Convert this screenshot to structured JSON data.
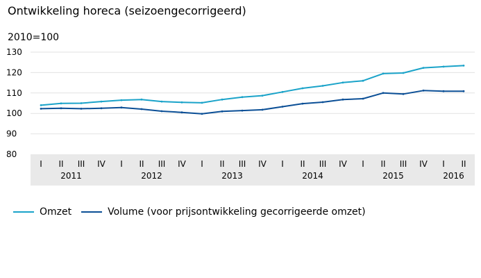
{
  "title": "Ontwikkeling horeca (seizoengecorrigeerd)",
  "unit_label": "2010=100",
  "legend": [
    {
      "label": "Omzet",
      "color": "#1aa3c9"
    },
    {
      "label": "Volume (voor prijsontwikkeling gecorrigeerde omzet)",
      "color": "#0b4f96"
    }
  ],
  "chart_data": {
    "type": "line",
    "title": "Ontwikkeling horeca (seizoengecorrigeerd)",
    "ylabel": "2010=100",
    "ylim": [
      80,
      130
    ],
    "yticks": [
      80,
      90,
      100,
      110,
      120,
      130
    ],
    "grid": true,
    "legend_position": "bottom",
    "quarters": [
      "I",
      "II",
      "III",
      "IV",
      "I",
      "II",
      "III",
      "IV",
      "I",
      "II",
      "III",
      "IV",
      "I",
      "II",
      "III",
      "IV",
      "I",
      "II",
      "III",
      "IV",
      "I",
      "II"
    ],
    "years": [
      {
        "label": "2011",
        "quarters": [
          "I",
          "II",
          "III",
          "IV"
        ]
      },
      {
        "label": "2012",
        "quarters": [
          "I",
          "II",
          "III",
          "IV"
        ]
      },
      {
        "label": "2013",
        "quarters": [
          "I",
          "II",
          "III",
          "IV"
        ]
      },
      {
        "label": "2014",
        "quarters": [
          "I",
          "II",
          "III",
          "IV"
        ]
      },
      {
        "label": "2015",
        "quarters": [
          "I",
          "II",
          "III",
          "IV"
        ]
      },
      {
        "label": "2016",
        "quarters": [
          "I",
          "II"
        ]
      }
    ],
    "series": [
      {
        "name": "Omzet",
        "color": "#1aa3c9",
        "values": [
          104.0,
          104.9,
          105.0,
          105.8,
          106.5,
          106.8,
          105.8,
          105.4,
          105.2,
          106.8,
          108.0,
          108.7,
          110.5,
          112.3,
          113.5,
          115.1,
          116.0,
          119.5,
          119.8,
          122.3,
          122.9,
          123.4
        ]
      },
      {
        "name": "Volume (voor prijsontwikkeling gecorrigeerde omzet)",
        "color": "#0b4f96",
        "values": [
          102.3,
          102.5,
          102.3,
          102.5,
          102.9,
          102.1,
          101.1,
          100.5,
          99.8,
          101.0,
          101.4,
          101.8,
          103.3,
          104.8,
          105.5,
          106.8,
          107.2,
          110.0,
          109.5,
          111.2,
          110.9,
          110.9
        ]
      }
    ]
  }
}
